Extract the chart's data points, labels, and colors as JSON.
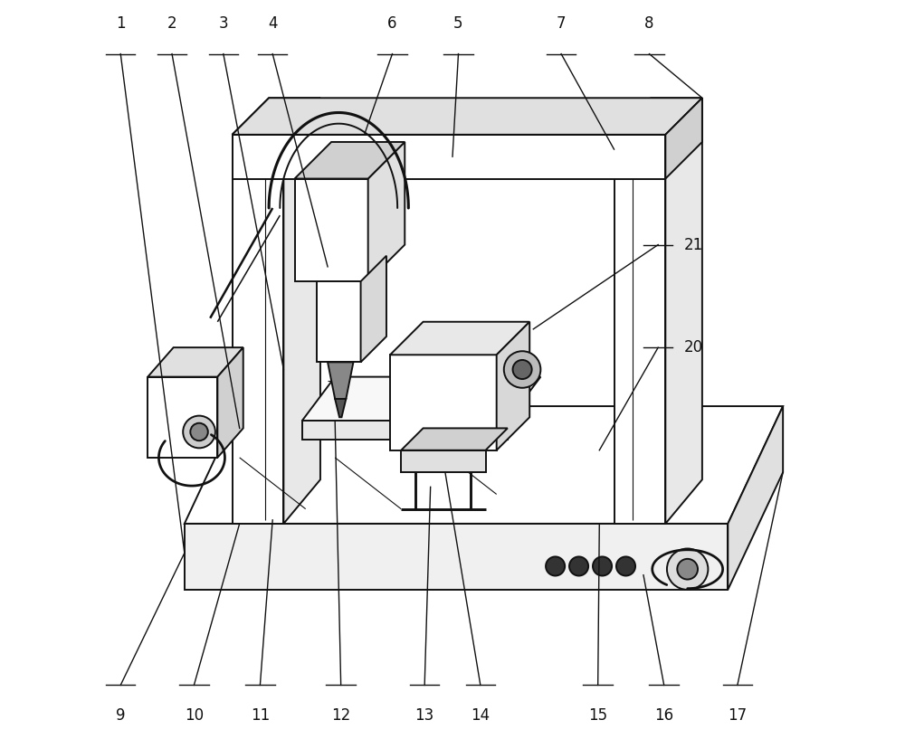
{
  "figure_size": [
    10.0,
    8.17
  ],
  "dpi": 100,
  "bg_color": "#ffffff",
  "line_color": "#111111",
  "lw": 1.4,
  "lw_thin": 0.8,
  "font_size": 12,
  "label_color": "#111111"
}
